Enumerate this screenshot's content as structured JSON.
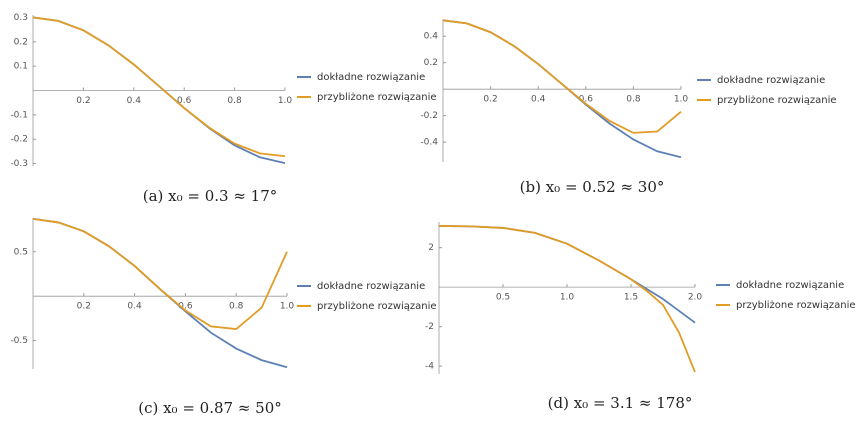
{
  "chart_data": [
    {
      "type": "line",
      "caption": "(a) x₀ = 0.3 ≈ 17°",
      "x": [
        0,
        0.1,
        0.2,
        0.3,
        0.4,
        0.5,
        0.6,
        0.7,
        0.8,
        0.9,
        1.0
      ],
      "series": [
        {
          "name": "dokładne rozwiązanie",
          "color": "#5e81b5",
          "values": [
            0.3,
            0.286,
            0.247,
            0.185,
            0.107,
            0.018,
            -0.072,
            -0.155,
            -0.225,
            -0.274,
            -0.298
          ]
        },
        {
          "name": "przybliżone rozwiązanie",
          "color": "#e19c24",
          "values": [
            0.3,
            0.286,
            0.247,
            0.185,
            0.107,
            0.018,
            -0.072,
            -0.153,
            -0.218,
            -0.258,
            -0.27
          ]
        }
      ],
      "xlim": [
        0,
        1
      ],
      "xticks": [
        0.2,
        0.4,
        0.6,
        0.8,
        {
          "value": 1,
          "label": "1.0"
        }
      ],
      "ylim": [
        -0.31,
        0.31
      ],
      "yticks": [
        -0.3,
        -0.2,
        -0.1,
        0.1,
        0.2,
        0.3
      ]
    },
    {
      "type": "line",
      "caption": "(b) x₀ = 0.52 ≈ 30°",
      "x": [
        0,
        0.1,
        0.2,
        0.3,
        0.4,
        0.5,
        0.6,
        0.7,
        0.8,
        0.9,
        1.0
      ],
      "series": [
        {
          "name": "dokładne rozwiązanie",
          "color": "#5e81b5",
          "values": [
            0.52,
            0.497,
            0.43,
            0.324,
            0.19,
            0.039,
            -0.116,
            -0.26,
            -0.38,
            -0.469,
            -0.514
          ]
        },
        {
          "name": "przybliżone rozwiązanie",
          "color": "#e19c24",
          "values": [
            0.52,
            0.497,
            0.43,
            0.324,
            0.19,
            0.039,
            -0.11,
            -0.24,
            -0.33,
            -0.32,
            -0.17
          ]
        }
      ],
      "xlim": [
        0,
        1
      ],
      "xticks": [
        0.2,
        0.4,
        0.6,
        0.8,
        {
          "value": 1,
          "label": "1.0"
        }
      ],
      "ylim": [
        -0.55,
        0.53
      ],
      "yticks": [
        -0.4,
        -0.2,
        0.2,
        0.4
      ]
    },
    {
      "type": "line",
      "caption": "(c) x₀ = 0.87 ≈ 50°",
      "x": [
        0,
        0.1,
        0.2,
        0.3,
        0.4,
        0.5,
        0.6,
        0.7,
        0.8,
        0.9,
        1.0
      ],
      "series": [
        {
          "name": "dokładne rozwiązanie",
          "color": "#5e81b5",
          "values": [
            0.87,
            0.83,
            0.73,
            0.56,
            0.34,
            0.08,
            -0.17,
            -0.41,
            -0.59,
            -0.72,
            -0.8
          ]
        },
        {
          "name": "przybliżone rozwiązanie",
          "color": "#e19c24",
          "values": [
            0.87,
            0.83,
            0.73,
            0.56,
            0.34,
            0.08,
            -0.16,
            -0.34,
            -0.37,
            -0.13,
            0.5
          ]
        }
      ],
      "xlim": [
        0,
        1
      ],
      "xticks": [
        0.2,
        0.4,
        0.6,
        0.8,
        {
          "value": 1,
          "label": "1.0"
        }
      ],
      "ylim": [
        -0.82,
        0.88
      ],
      "yticks": [
        -0.5,
        0.5
      ]
    },
    {
      "type": "line",
      "caption": "(d) x₀ = 3.1 ≈ 178°",
      "x": [
        0,
        0.25,
        0.5,
        0.75,
        1.0,
        1.25,
        1.5,
        1.625,
        1.75,
        1.875,
        2.0
      ],
      "series": [
        {
          "name": "dokładne rozwiązanie",
          "color": "#5e81b5",
          "values": [
            3.1,
            3.08,
            3.0,
            2.75,
            2.2,
            1.35,
            0.4,
            -0.1,
            -0.6,
            -1.2,
            -1.8
          ]
        },
        {
          "name": "przybliżone rozwiązanie",
          "color": "#e19c24",
          "values": [
            3.1,
            3.08,
            3.0,
            2.75,
            2.2,
            1.35,
            0.4,
            -0.2,
            -0.9,
            -2.3,
            -4.3
          ]
        }
      ],
      "xlim": [
        0,
        2
      ],
      "xticks": [
        0.5,
        {
          "value": 1,
          "label": "1.0"
        },
        1.5,
        {
          "value": 2,
          "label": "2.0"
        }
      ],
      "ylim": [
        -4.4,
        3.3
      ],
      "yticks": [
        -4,
        -2,
        2
      ]
    }
  ]
}
